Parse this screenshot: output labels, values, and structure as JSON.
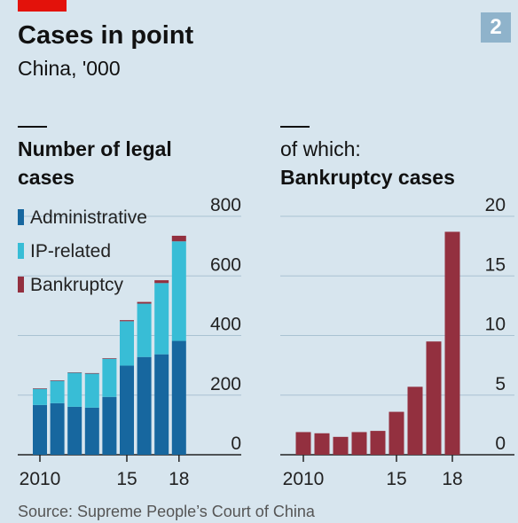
{
  "header": {
    "title": "Cases in point",
    "subtitle": "China, '000",
    "number": "2"
  },
  "source": "Source: Supreme People’s Court of China",
  "chart_data": [
    {
      "type": "stacked_bar",
      "title": "Number of legal cases",
      "categories": [
        "2010",
        null,
        null,
        null,
        null,
        "15",
        null,
        null,
        "18"
      ],
      "series": [
        {
          "name": "Administrative",
          "color": "#17679f",
          "values": [
            167,
            173,
            161,
            158,
            194,
            299,
            328,
            337,
            382
          ]
        },
        {
          "name": "IP-related",
          "color": "#38bdd6",
          "values": [
            54,
            75,
            114,
            114,
            128,
            149,
            179,
            239,
            334
          ]
        },
        {
          "name": "Bankruptcy",
          "color": "#93303f",
          "values": [
            1.9,
            1.8,
            1.5,
            1.9,
            2.0,
            3.6,
            5.7,
            9.5,
            18.7
          ]
        }
      ],
      "ylim": [
        0,
        800
      ],
      "yticks": [
        0,
        200,
        400,
        600,
        800
      ],
      "grid": true,
      "legend": "top-left"
    },
    {
      "type": "bar",
      "subtitle": "of which:",
      "title": "Bankruptcy cases",
      "categories": [
        "2010",
        null,
        null,
        null,
        null,
        "15",
        null,
        null,
        "18"
      ],
      "values": [
        1.9,
        1.8,
        1.5,
        1.9,
        2.0,
        3.6,
        5.7,
        9.5,
        18.7
      ],
      "color": "#93303f",
      "ylim": [
        0,
        20
      ],
      "yticks": [
        0,
        5,
        10,
        15,
        20
      ],
      "grid": true
    }
  ]
}
